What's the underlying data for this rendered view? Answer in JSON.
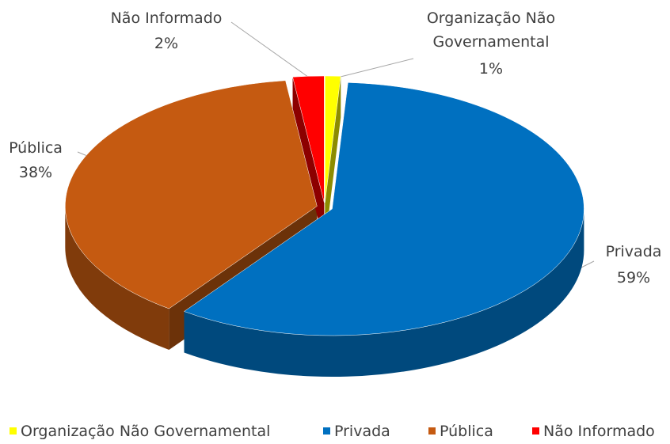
{
  "chart_data": {
    "type": "pie3d",
    "categories": [
      "Organização Não Governamental",
      "Privada",
      "Pública",
      "Não Informado"
    ],
    "values": [
      1,
      59,
      38,
      2
    ],
    "value_labels": [
      "1%",
      "59%",
      "38%",
      "2%"
    ],
    "colors": [
      "#ffff00",
      "#0070c0",
      "#c55a11",
      "#ff0000"
    ],
    "legend": "bottom"
  }
}
